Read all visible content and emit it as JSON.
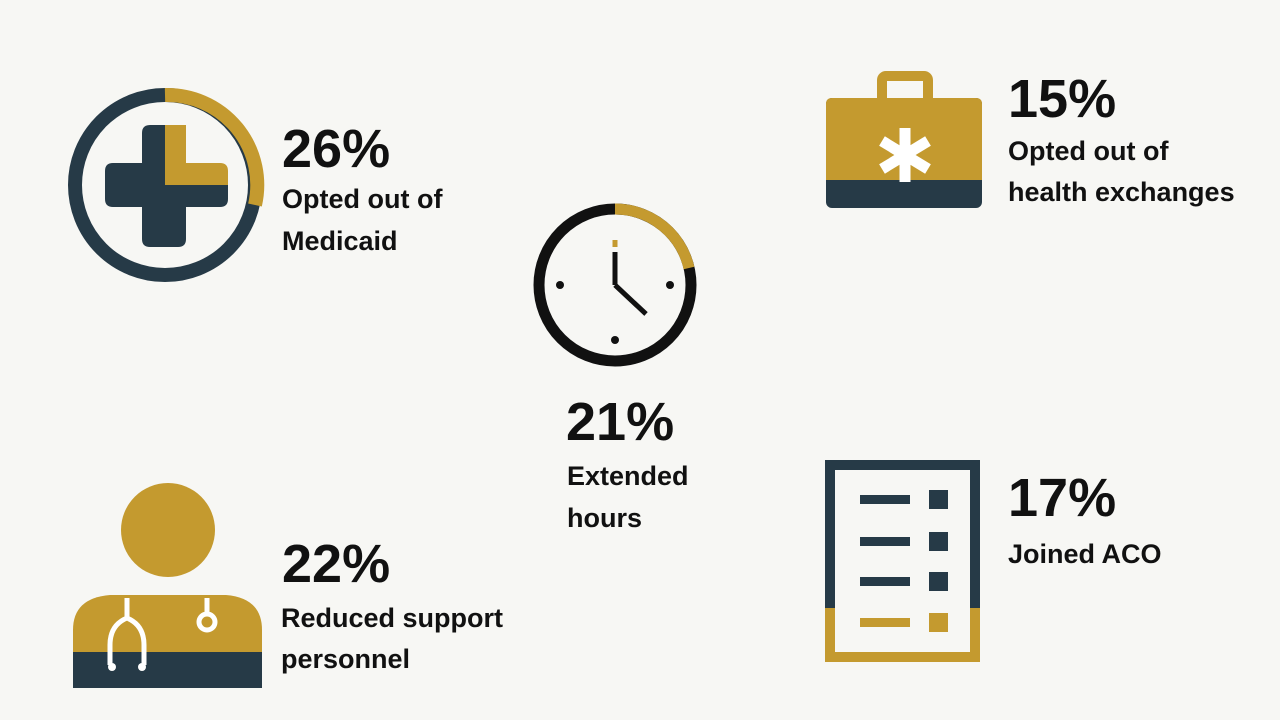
{
  "items": [
    {
      "percent": "26%",
      "lines": [
        "Opted out of",
        "Medicaid"
      ]
    },
    {
      "percent": "21%",
      "lines": [
        "Extended",
        "hours"
      ]
    },
    {
      "percent": "15%",
      "lines": [
        "Opted out of",
        "health exchanges"
      ]
    },
    {
      "percent": "22%",
      "lines": [
        "Reduced support",
        "personnel"
      ]
    },
    {
      "percent": "17%",
      "lines": [
        "Joined ACO"
      ]
    }
  ]
}
